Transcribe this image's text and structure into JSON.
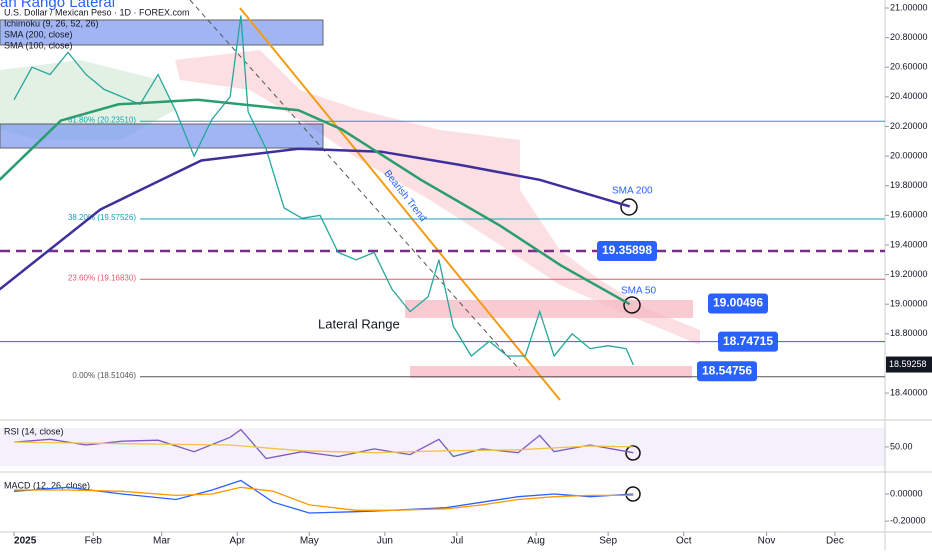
{
  "chart_data": [
    {
      "type": "line",
      "title": "an Rango Lateral",
      "subtitle": "U.S. Dollar / Mexican Peso · 1D · FOREX.com",
      "indicators": [
        "Ichimoku (9, 26, 52, 26)",
        "SMA (200, close)",
        "SMA (100, close)"
      ],
      "annotations": [
        "Lateral Range",
        "Bearish Trend"
      ],
      "xlim": [
        -3.9,
        241.9
      ],
      "ylim": [
        18.218,
        21.054
      ],
      "yticks": [
        {
          "value": 21.0,
          "label": "21.00000"
        },
        {
          "value": 20.8,
          "label": "20.80000"
        },
        {
          "value": 20.6,
          "label": "20.60000"
        },
        {
          "value": 20.4,
          "label": "20.40000"
        },
        {
          "value": 20.2,
          "label": "20.20000"
        },
        {
          "value": 20.0,
          "label": "20.00000"
        },
        {
          "value": 19.8,
          "label": "19.80000"
        },
        {
          "value": 19.6,
          "label": "19.60000"
        },
        {
          "value": 19.4,
          "label": "19.40000"
        },
        {
          "value": 19.2,
          "label": "19.20000"
        },
        {
          "value": 19.0,
          "label": "19.00000"
        },
        {
          "value": 18.8,
          "label": "18.80000"
        },
        {
          "value": 18.4,
          "label": "18.40000"
        }
      ],
      "series": [
        {
          "color": "#26a69a",
          "x": [
            0,
            5,
            10,
            15,
            20,
            25,
            30,
            35,
            40,
            45,
            50,
            55,
            60,
            63,
            65,
            70,
            75,
            80,
            85,
            90,
            95,
            100,
            105,
            110,
            115,
            118,
            122,
            127,
            132,
            137,
            142,
            146,
            150,
            155,
            160,
            165,
            170,
            172
          ],
          "values": [
            20.38,
            20.6,
            20.55,
            20.7,
            20.55,
            20.45,
            20.4,
            20.35,
            20.55,
            20.3,
            20.0,
            20.25,
            20.4,
            20.95,
            20.3,
            20.05,
            19.65,
            19.58,
            19.6,
            19.35,
            19.3,
            19.35,
            19.1,
            18.95,
            19.05,
            19.3,
            18.85,
            18.65,
            18.75,
            18.65,
            18.65,
            18.95,
            18.65,
            18.8,
            18.7,
            18.72,
            18.7,
            18.59
          ]
        },
        {
          "name": "SMA 200",
          "color": "#3f2f9c",
          "x": [
            -4,
            24,
            52,
            79,
            102,
            124,
            146,
            171
          ],
          "values": [
            19.1,
            19.64,
            19.97,
            20.05,
            20.03,
            19.94,
            19.84,
            19.66
          ]
        },
        {
          "name": "SMA 50",
          "color": "#2a9d6f",
          "x": [
            -4,
            13,
            29,
            51,
            79,
            91,
            113,
            135,
            152,
            171
          ],
          "values": [
            19.84,
            20.24,
            20.35,
            20.38,
            20.31,
            20.18,
            19.84,
            19.53,
            19.26,
            19.0
          ]
        }
      ],
      "levels": [
        {
          "value": 19.35898,
          "color": "#7b2d8e",
          "style": "dashed"
        },
        {
          "value": 19.00496,
          "color": "#f28b9b",
          "style": "zone"
        },
        {
          "value": 18.74715,
          "color": "#2962ff",
          "style": "solid"
        },
        {
          "value": 18.54756,
          "color": "#f28b9b",
          "style": "zone"
        }
      ],
      "current": 18.59258,
      "fib": [
        {
          "value": 20.2351,
          "label": "61.80% (20.23510)",
          "color": "#17a2b8"
        },
        {
          "value": 19.57526,
          "label": "38.20% (19.57526)",
          "color": "#17a2b8"
        },
        {
          "value": 19.1683,
          "label": "23.60% (19.16830)",
          "color": "#e05a6a"
        },
        {
          "value": 18.51046,
          "label": "0.00% (18.51046)",
          "color": "#555"
        }
      ]
    },
    {
      "type": "line",
      "title": "RSI (14, close)",
      "xlim": [
        -3.9,
        241.9
      ],
      "ylim": [
        26,
        77
      ],
      "yticks": [
        {
          "value": 50,
          "label": "50.00"
        }
      ],
      "series": [
        {
          "color": "#7e57c2",
          "x": [
            0,
            10,
            20,
            30,
            40,
            50,
            60,
            63,
            70,
            80,
            90,
            100,
            110,
            118,
            122,
            130,
            140,
            146,
            150,
            160,
            172
          ],
          "values": [
            55,
            58,
            52,
            56,
            57,
            45,
            60,
            68,
            38,
            45,
            40,
            48,
            42,
            58,
            40,
            48,
            44,
            62,
            45,
            52,
            44
          ]
        },
        {
          "color": "#f5c242",
          "x": [
            0,
            20,
            40,
            60,
            80,
            100,
            120,
            140,
            160,
            172
          ],
          "values": [
            55,
            54,
            53,
            52,
            46,
            44,
            46,
            47,
            51,
            50
          ]
        }
      ]
    },
    {
      "type": "line",
      "title": "MACD (12, 26, close)",
      "xlim": [
        -3.9,
        241.9
      ],
      "ylim": [
        -0.28,
        0.133
      ],
      "yticks": [
        {
          "value": 0,
          "label": "0.00000"
        },
        {
          "value": -0.2,
          "label": "-0.20000"
        }
      ],
      "xticks": [
        {
          "value": 0,
          "label": "2025"
        },
        {
          "value": 22,
          "label": "Feb"
        },
        {
          "value": 41,
          "label": "Mar"
        },
        {
          "value": 62,
          "label": "Apr"
        },
        {
          "value": 82,
          "label": "May"
        },
        {
          "value": 103,
          "label": "Jun"
        },
        {
          "value": 123,
          "label": "Jul"
        },
        {
          "value": 145,
          "label": "Aug"
        },
        {
          "value": 165,
          "label": "Sep"
        },
        {
          "value": 186,
          "label": "Oct"
        },
        {
          "value": 209,
          "label": "Nov"
        },
        {
          "value": 228,
          "label": "Dec"
        }
      ],
      "series": [
        {
          "color": "#2962ff",
          "x": [
            0,
            15,
            30,
            45,
            55,
            63,
            72,
            82,
            95,
            105,
            120,
            130,
            140,
            150,
            160,
            172
          ],
          "values": [
            0.02,
            0.05,
            0.0,
            -0.04,
            0.03,
            0.1,
            -0.06,
            -0.14,
            -0.13,
            -0.12,
            -0.1,
            -0.06,
            -0.02,
            0.0,
            -0.02,
            0.0
          ]
        },
        {
          "color": "#ff9800",
          "x": [
            0,
            15,
            30,
            45,
            55,
            63,
            72,
            82,
            95,
            105,
            120,
            130,
            140,
            150,
            160,
            172
          ],
          "values": [
            0.03,
            0.03,
            0.02,
            -0.01,
            0.0,
            0.05,
            0.02,
            -0.08,
            -0.12,
            -0.12,
            -0.11,
            -0.08,
            -0.04,
            -0.02,
            -0.01,
            -0.01
          ]
        }
      ]
    }
  ]
}
